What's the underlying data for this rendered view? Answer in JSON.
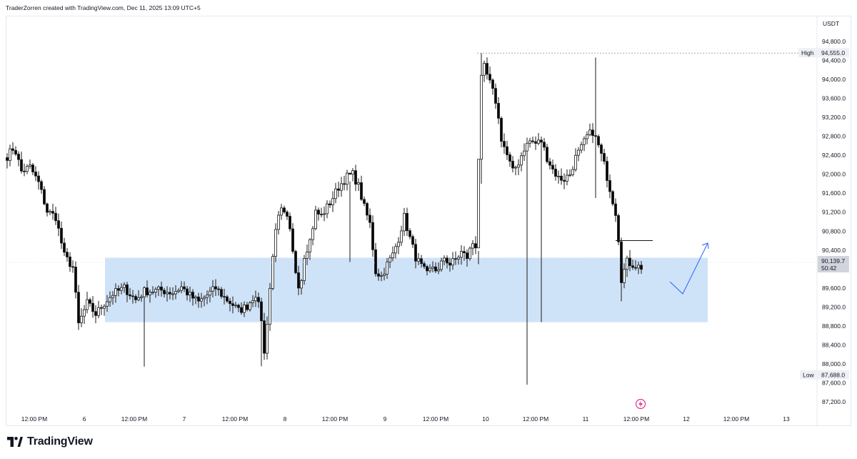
{
  "header": {
    "caption": "TraderZorren created with TradingView.com, Dec 11, 2025 13:09 UTC+5"
  },
  "brand": {
    "name": "TradingView",
    "logo_icon": "tradingview-logo-icon"
  },
  "chart_data": {
    "type": "candlestick",
    "currency": "USDT",
    "ylim": [
      86900,
      94900
    ],
    "y_ticks": [
      "87,200.0",
      "87,600.0",
      "88,000.0",
      "88,400.0",
      "88,800.0",
      "89,200.0",
      "89,600.0",
      "90,000.0",
      "90,400.0",
      "90,800.0",
      "91,200.0",
      "91,600.0",
      "92,000.0",
      "92,400.0",
      "92,800.0",
      "93,200.0",
      "93,600.0",
      "94,000.0",
      "94,400.0",
      "94,800.0"
    ],
    "x_tick_labels": [
      "12:00 PM",
      "6",
      "12:00 PM",
      "7",
      "12:00 PM",
      "8",
      "12:00 PM",
      "9",
      "12:00 PM",
      "10",
      "12:00 PM",
      "11",
      "12:00 PM",
      "12",
      "12:00 PM",
      "13"
    ],
    "high": {
      "label": "High",
      "value": "94,555.0",
      "price": 94555
    },
    "low": {
      "label": "Low",
      "value": "87,688.0",
      "price": 87688
    },
    "last_price": {
      "value": "90,139.7",
      "countdown": "50:42",
      "price": 90140
    },
    "demand_zone": {
      "from": 88880,
      "to": 90240,
      "color": "#cfe3f8"
    },
    "candle_colors": {
      "up": "#ffffff",
      "down": "#000000",
      "wick": "#1a1a1a"
    },
    "projection": {
      "description_none": ""
    },
    "candles": []
  }
}
